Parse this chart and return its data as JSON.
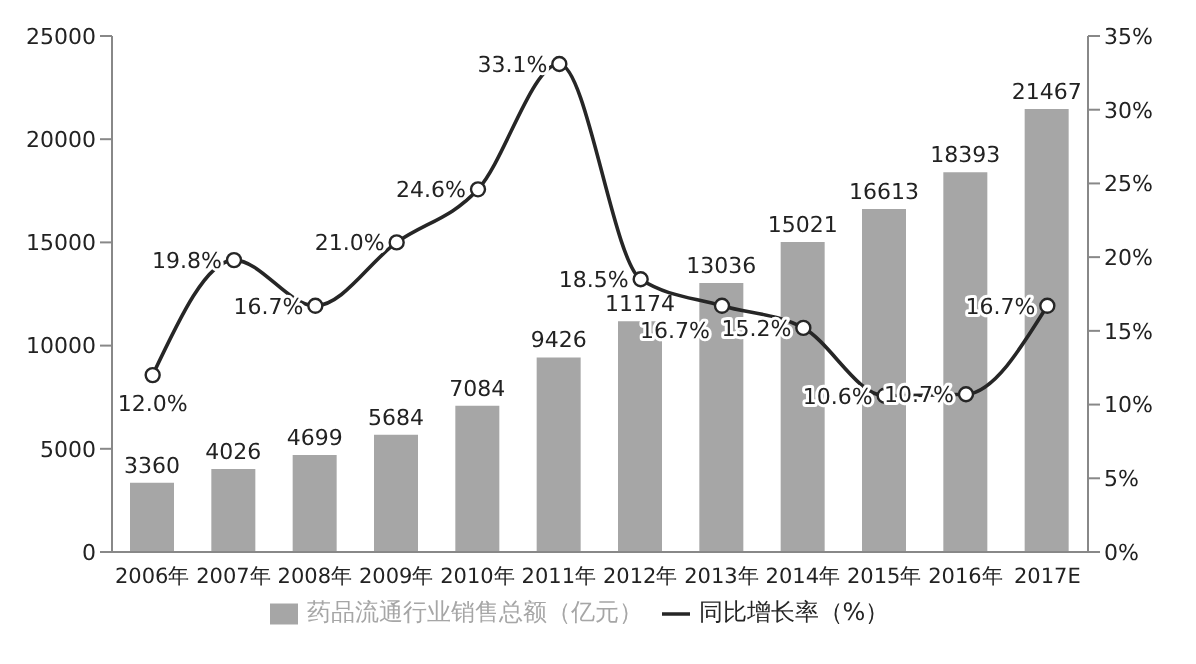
{
  "chart_data": {
    "type": "bar",
    "categories": [
      "2006年",
      "2007年",
      "2008年",
      "2009年",
      "2010年",
      "2011年",
      "2012年",
      "2013年",
      "2014年",
      "2015年",
      "2016年",
      "2017E"
    ],
    "series": [
      {
        "name": "药品流通行业销售总额（亿元）",
        "color": "#a6a6a6",
        "values": [
          3360,
          4026,
          4699,
          5684,
          7084,
          9426,
          11174,
          13036,
          15021,
          16613,
          18393,
          21467
        ],
        "data_labels": true
      },
      {
        "name": "同比增长率（%）",
        "type": "line",
        "axis": "y2",
        "color": "#262626",
        "marker": "circle",
        "values": [
          12.0,
          19.8,
          16.7,
          21.0,
          24.6,
          33.1,
          18.5,
          16.7,
          15.2,
          10.6,
          10.7,
          16.7
        ],
        "value_labels": [
          "12.0%",
          "19.8%",
          "16.7%",
          "21.0%",
          "24.6%",
          "33.1%",
          "18.5%",
          "16.7%",
          "15.2%",
          "10.6%",
          "10.7%",
          "16.7%"
        ]
      }
    ],
    "ylim": [
      0,
      25000
    ],
    "yticks": [
      0,
      5000,
      10000,
      15000,
      20000,
      25000
    ],
    "y2lim": [
      0,
      35
    ],
    "y2ticks": [
      {
        "value": 0,
        "label": "0%"
      },
      {
        "value": 5,
        "label": "5%"
      },
      {
        "value": 10,
        "label": "10%"
      },
      {
        "value": 15,
        "label": "15%"
      },
      {
        "value": 20,
        "label": "20%"
      },
      {
        "value": 25,
        "label": "25%"
      },
      {
        "value": 30,
        "label": "30%"
      },
      {
        "value": 35,
        "label": "35%"
      }
    ],
    "grid": false,
    "legend": "bottom"
  }
}
